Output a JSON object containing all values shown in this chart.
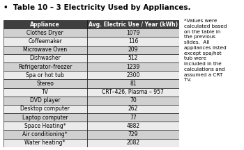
{
  "title": "Table 10 – 3 Electricity Used by Appliances.",
  "col1_header": "Appliance",
  "col2_header": "Avg. Electric Use / Year (kWh)",
  "rows": [
    [
      "Clothes Dryer",
      "1079"
    ],
    [
      "Coffeemaker",
      "116"
    ],
    [
      "Microwave Oven",
      "209"
    ],
    [
      "Dishwasher",
      "512"
    ],
    [
      "Refrigerator–freezer",
      "1239"
    ],
    [
      "Spa or hot tub",
      "2300"
    ],
    [
      "Stereo",
      "81"
    ],
    [
      "TV",
      "CRT–426, Plasma – 957"
    ],
    [
      "DVD player",
      "70"
    ],
    [
      "Desktop computer",
      "262"
    ],
    [
      "Laptop computer",
      "77"
    ],
    [
      "Space Heating*",
      "4882"
    ],
    [
      "Air conditioning*",
      "729"
    ],
    [
      "Water heating*",
      "2082"
    ]
  ],
  "footnote": "*Values were\ncalculated based\non the table in\nthe previous\nslides.  All\nappliances listed\nexcept spa/hot\ntub were\nincluded in the\ncalculations and\nassumed a CRT\nTV.",
  "header_bg": "#3f3f3f",
  "header_fg": "#ffffff",
  "row_bg_odd": "#d0d0d0",
  "row_bg_even": "#ebebeb",
  "border_color": "#000000",
  "title_fontsize": 7.5,
  "header_fontsize": 5.5,
  "cell_fontsize": 5.5,
  "footnote_fontsize": 5.2,
  "background_color": "#ffffff",
  "bullet": "•"
}
